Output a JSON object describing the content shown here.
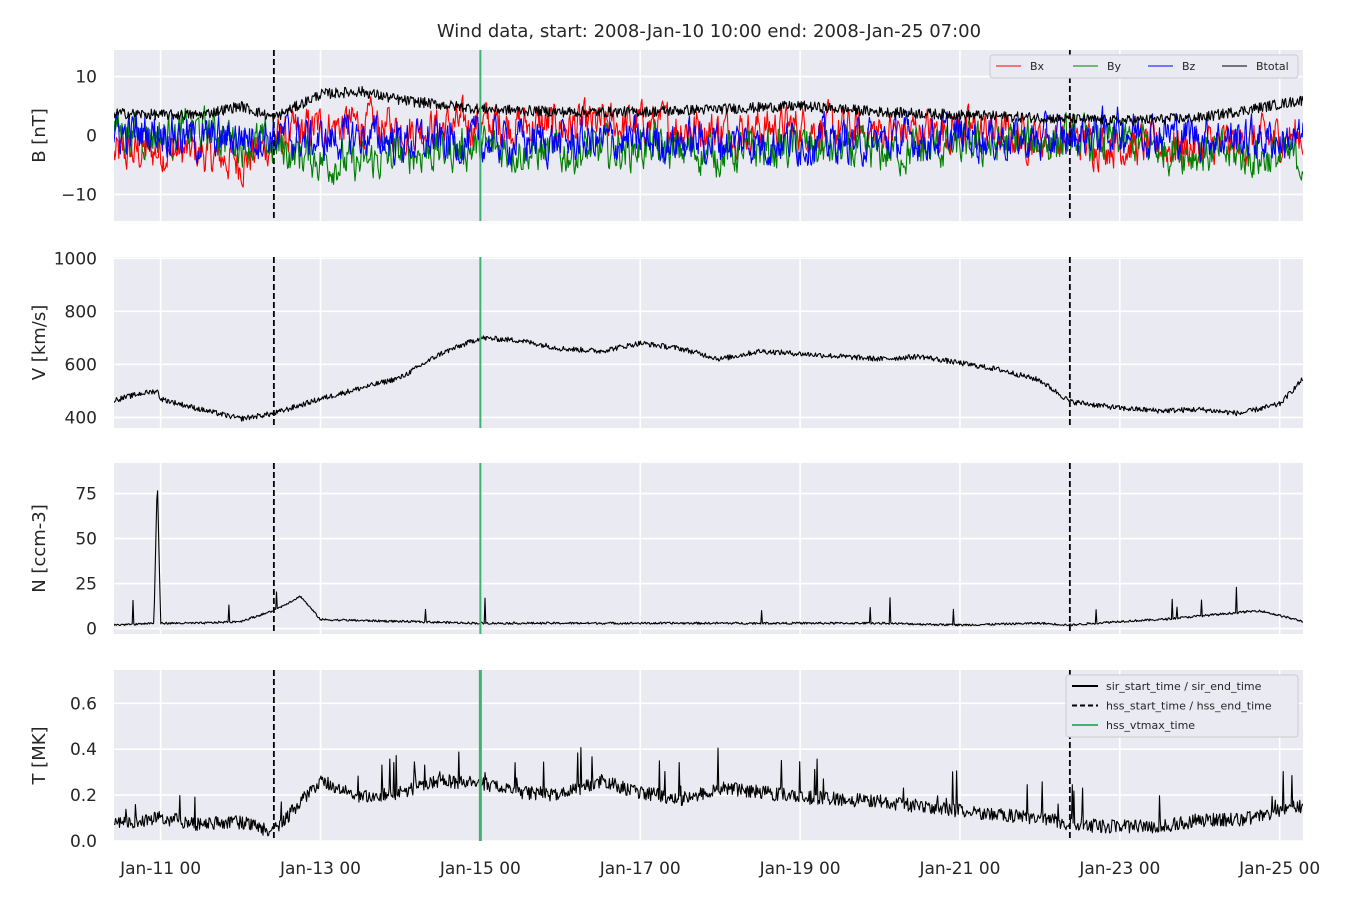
{
  "chart_data": {
    "type": "line",
    "title": "Wind data, start: 2008-Jan-10 10:00  end: 2008-Jan-25 07:00",
    "x_range": [
      "2008-01-10T10:00",
      "2008-01-25T07:00"
    ],
    "x_ticks": [
      "2008-01-11T00:00",
      "2008-01-13T00:00",
      "2008-01-15T00:00",
      "2008-01-17T00:00",
      "2008-01-19T00:00",
      "2008-01-21T00:00",
      "2008-01-23T00:00",
      "2008-01-25T00:00"
    ],
    "x_tick_labels": [
      "Jan-11 00",
      "Jan-13 00",
      "Jan-15 00",
      "Jan-17 00",
      "Jan-19 00",
      "Jan-21 00",
      "Jan-23 00",
      "Jan-25 00"
    ],
    "grid": true,
    "markers": {
      "sir_start_end": [
        "2008-01-12T10:00",
        "2008-01-22T09:00"
      ],
      "hss_vtmax_time": "2008-01-15T00:00",
      "colors": {
        "dashed": "#000000",
        "green": "#3cb371"
      }
    },
    "panels": [
      {
        "ylabel": "B [nT]",
        "ylim": [
          -14.5,
          14.5
        ],
        "yticks": [
          -10,
          0,
          10
        ],
        "ytick_labels": [
          "−10",
          "0",
          "10"
        ],
        "legend_position": "top-right",
        "legend": [
          {
            "label": "Bx",
            "color": "#ff0000"
          },
          {
            "label": "By",
            "color": "#008000"
          },
          {
            "label": "Bz",
            "color": "#0000ff"
          },
          {
            "label": "Btotal",
            "color": "#000000"
          }
        ],
        "series": [
          {
            "name": "Bx",
            "color": "#ff0000",
            "x": [
              "2008-01-10T10:00",
              "2008-01-11T00:00",
              "2008-01-11T12:00",
              "2008-01-12T00:00",
              "2008-01-12T10:00",
              "2008-01-13T00:00",
              "2008-01-13T12:00",
              "2008-01-14T00:00",
              "2008-01-15T00:00",
              "2008-01-16T00:00",
              "2008-01-17T00:00",
              "2008-01-18T00:00",
              "2008-01-19T00:00",
              "2008-01-20T00:00",
              "2008-01-21T00:00",
              "2008-01-22T00:00",
              "2008-01-23T00:00",
              "2008-01-24T00:00",
              "2008-01-25T07:00"
            ],
            "y": [
              -3.5,
              -2.5,
              -3,
              -4.5,
              -1,
              1.5,
              2,
              1,
              2,
              1.5,
              2,
              1,
              1.5,
              0.5,
              1,
              -0.5,
              -1.5,
              -2,
              0
            ]
          },
          {
            "name": "By",
            "color": "#008000",
            "x": [
              "2008-01-10T10:00",
              "2008-01-11T00:00",
              "2008-01-11T12:00",
              "2008-01-12T00:00",
              "2008-01-12T10:00",
              "2008-01-13T00:00",
              "2008-01-13T12:00",
              "2008-01-14T00:00",
              "2008-01-15T00:00",
              "2008-01-16T00:00",
              "2008-01-17T00:00",
              "2008-01-18T00:00",
              "2008-01-19T00:00",
              "2008-01-20T00:00",
              "2008-01-21T00:00",
              "2008-01-22T00:00",
              "2008-01-23T00:00",
              "2008-01-24T00:00",
              "2008-01-25T07:00"
            ],
            "y": [
              1,
              0,
              1,
              -1,
              -2,
              -4,
              -5,
              -3,
              -2,
              -3,
              -2,
              -3,
              -2,
              -3,
              -2,
              -1,
              -1,
              -3,
              -4
            ]
          },
          {
            "name": "Bz",
            "color": "#0000ff",
            "x": [
              "2008-01-10T10:00",
              "2008-01-11T00:00",
              "2008-01-11T12:00",
              "2008-01-12T00:00",
              "2008-01-12T10:00",
              "2008-01-13T00:00",
              "2008-01-13T12:00",
              "2008-01-14T00:00",
              "2008-01-15T00:00",
              "2008-01-16T00:00",
              "2008-01-17T00:00",
              "2008-01-18T00:00",
              "2008-01-19T00:00",
              "2008-01-20T00:00",
              "2008-01-21T00:00",
              "2008-01-22T00:00",
              "2008-01-23T00:00",
              "2008-01-24T00:00",
              "2008-01-25T07:00"
            ],
            "y": [
              0,
              1,
              -1,
              0,
              0,
              -1,
              0,
              -1,
              -1,
              -1,
              -1,
              -1,
              -1,
              -1,
              0,
              -1,
              1,
              0,
              -1
            ]
          },
          {
            "name": "Btotal",
            "color": "#000000",
            "x": [
              "2008-01-10T10:00",
              "2008-01-11T00:00",
              "2008-01-11T12:00",
              "2008-01-12T00:00",
              "2008-01-12T10:00",
              "2008-01-13T00:00",
              "2008-01-13T12:00",
              "2008-01-14T00:00",
              "2008-01-15T00:00",
              "2008-01-16T00:00",
              "2008-01-17T00:00",
              "2008-01-18T00:00",
              "2008-01-19T00:00",
              "2008-01-20T00:00",
              "2008-01-21T00:00",
              "2008-01-22T00:00",
              "2008-01-23T00:00",
              "2008-01-24T00:00",
              "2008-01-25T07:00"
            ],
            "y": [
              3.8,
              3.5,
              3.5,
              5,
              3,
              7,
              7.5,
              6,
              4.5,
              4,
              4,
              4.5,
              5,
              4,
              3.5,
              3,
              2.5,
              3,
              6
            ]
          }
        ]
      },
      {
        "ylabel": "V [km/s]",
        "ylim": [
          360,
          1005
        ],
        "yticks": [
          400,
          600,
          800,
          1000
        ],
        "ytick_labels": [
          "400",
          "600",
          "800",
          "1000"
        ],
        "series": [
          {
            "name": "V",
            "color": "#000000",
            "x": [
              "2008-01-10T10:00",
              "2008-01-10T18:00",
              "2008-01-10T23:00",
              "2008-01-11T00:00",
              "2008-01-11T12:00",
              "2008-01-12T00:00",
              "2008-01-12T10:00",
              "2008-01-13T00:00",
              "2008-01-13T12:00",
              "2008-01-14T00:00",
              "2008-01-14T12:00",
              "2008-01-15T00:00",
              "2008-01-15T12:00",
              "2008-01-16T00:00",
              "2008-01-16T12:00",
              "2008-01-17T00:00",
              "2008-01-17T12:00",
              "2008-01-18T00:00",
              "2008-01-18T12:00",
              "2008-01-19T00:00",
              "2008-01-19T12:00",
              "2008-01-20T00:00",
              "2008-01-20T12:00",
              "2008-01-21T00:00",
              "2008-01-21T12:00",
              "2008-01-22T00:00",
              "2008-01-22T09:00",
              "2008-01-23T00:00",
              "2008-01-23T12:00",
              "2008-01-24T00:00",
              "2008-01-24T12:00",
              "2008-01-25T00:00",
              "2008-01-25T07:00"
            ],
            "y": [
              465,
              490,
              500,
              470,
              430,
              395,
              415,
              470,
              510,
              550,
              640,
              700,
              690,
              660,
              650,
              680,
              660,
              620,
              650,
              640,
              630,
              620,
              630,
              605,
              580,
              540,
              460,
              435,
              425,
              430,
              415,
              450,
              545
            ]
          }
        ]
      },
      {
        "ylabel": "N [ccm-3]",
        "ylim": [
          -3,
          92
        ],
        "yticks": [
          0,
          25,
          50,
          75
        ],
        "ytick_labels": [
          "0",
          "25",
          "50",
          "75"
        ],
        "series": [
          {
            "name": "N",
            "color": "#000000",
            "x": [
              "2008-01-10T10:00",
              "2008-01-10T22:00",
              "2008-01-10T23:00",
              "2008-01-11T00:00",
              "2008-01-11T12:00",
              "2008-01-12T00:00",
              "2008-01-12T10:00",
              "2008-01-12T18:00",
              "2008-01-13T00:00",
              "2008-01-14T00:00",
              "2008-01-15T00:00",
              "2008-01-16T00:00",
              "2008-01-17T00:00",
              "2008-01-18T00:00",
              "2008-01-19T00:00",
              "2008-01-20T00:00",
              "2008-01-21T00:00",
              "2008-01-22T00:00",
              "2008-01-22T09:00",
              "2008-01-23T00:00",
              "2008-01-23T12:00",
              "2008-01-24T00:00",
              "2008-01-24T18:00",
              "2008-01-25T07:00"
            ],
            "y": [
              2,
              3,
              84,
              3,
              3,
              4,
              10,
              18,
              5,
              4,
              3,
              3,
              3,
              3,
              3,
              3,
              2,
              3,
              2,
              4,
              5,
              7,
              10,
              4
            ]
          }
        ]
      },
      {
        "ylabel": "T [MK]",
        "ylim": [
          0,
          0.745
        ],
        "yticks": [
          0.0,
          0.2,
          0.4,
          0.6
        ],
        "ytick_labels": [
          "0.0",
          "0.2",
          "0.4",
          "0.6"
        ],
        "legend_position": "top-right",
        "legend": [
          {
            "label": "sir_start_time / sir_end_time",
            "style": "solid",
            "color": "#000000"
          },
          {
            "label": "hss_start_time / hss_end_time",
            "style": "dashed",
            "color": "#000000"
          },
          {
            "label": "hss_vtmax_time",
            "style": "solid",
            "color": "#3cb371"
          }
        ],
        "series": [
          {
            "name": "T",
            "color": "#000000",
            "x": [
              "2008-01-10T10:00",
              "2008-01-11T00:00",
              "2008-01-11T12:00",
              "2008-01-12T00:00",
              "2008-01-12T10:00",
              "2008-01-13T00:00",
              "2008-01-13T12:00",
              "2008-01-14T00:00",
              "2008-01-14T12:00",
              "2008-01-15T00:00",
              "2008-01-15T12:00",
              "2008-01-16T00:00",
              "2008-01-16T12:00",
              "2008-01-17T00:00",
              "2008-01-17T12:00",
              "2008-01-18T00:00",
              "2008-01-18T12:00",
              "2008-01-19T00:00",
              "2008-01-19T12:00",
              "2008-01-20T00:00",
              "2008-01-20T12:00",
              "2008-01-21T00:00",
              "2008-01-21T12:00",
              "2008-01-22T00:00",
              "2008-01-22T09:00",
              "2008-01-23T00:00",
              "2008-01-23T12:00",
              "2008-01-24T00:00",
              "2008-01-24T12:00",
              "2008-01-25T00:00",
              "2008-01-25T07:00"
            ],
            "y": [
              0.06,
              0.09,
              0.06,
              0.07,
              0.03,
              0.25,
              0.18,
              0.2,
              0.25,
              0.24,
              0.2,
              0.19,
              0.25,
              0.2,
              0.17,
              0.22,
              0.2,
              0.18,
              0.17,
              0.16,
              0.14,
              0.12,
              0.1,
              0.09,
              0.06,
              0.05,
              0.05,
              0.08,
              0.08,
              0.12,
              0.14
            ]
          }
        ]
      }
    ]
  }
}
